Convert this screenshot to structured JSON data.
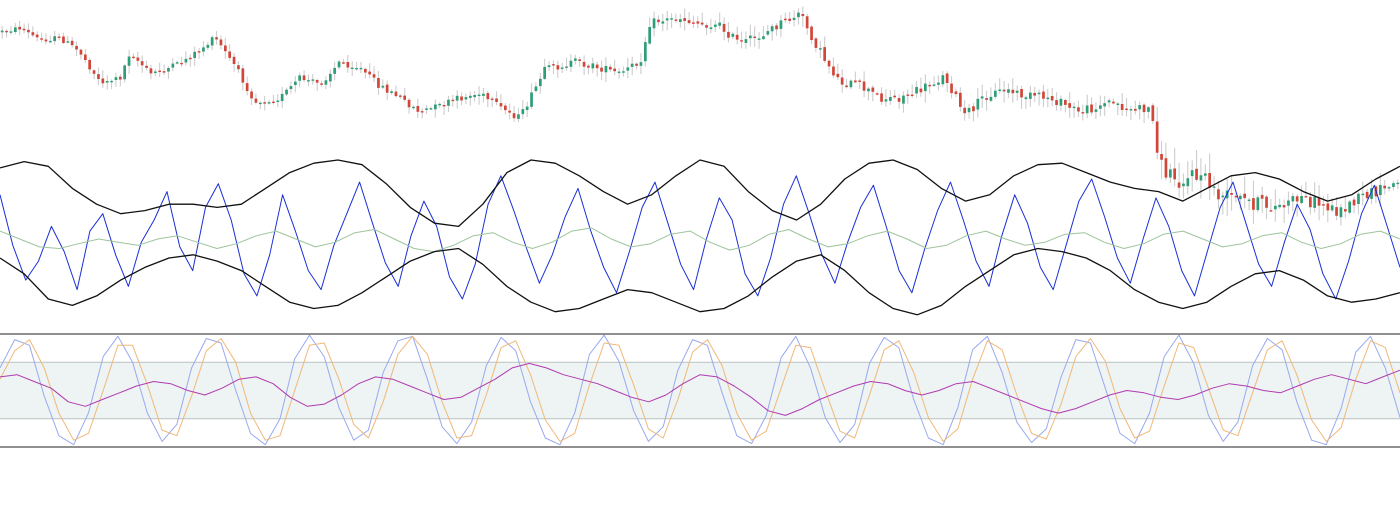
{
  "colors": {
    "up": "#2e9e76",
    "down": "#d2463a",
    "wick": "#c8c8c8",
    "band": "#111111",
    "rsi": "#1a2fd6",
    "rsi_ma": "#9cc49c",
    "stoch_k": "#9aa9ee",
    "stoch_d": "#f0b87a",
    "mid": "#b03bb0",
    "zone": "#eef3f3",
    "zone_line": "#b9c2c2",
    "frame": "#222222",
    "background": "#ffffff"
  },
  "chart_data": [
    {
      "type": "candlestick",
      "title": "",
      "candles_count": 320,
      "close_path": [
        [
          0,
          32
        ],
        [
          20,
          28
        ],
        [
          40,
          40
        ],
        [
          60,
          38
        ],
        [
          80,
          52
        ],
        [
          100,
          82
        ],
        [
          120,
          78
        ],
        [
          130,
          52
        ],
        [
          150,
          74
        ],
        [
          175,
          66
        ],
        [
          200,
          50
        ],
        [
          215,
          38
        ],
        [
          235,
          66
        ],
        [
          255,
          102
        ],
        [
          280,
          98
        ],
        [
          300,
          78
        ],
        [
          320,
          84
        ],
        [
          340,
          62
        ],
        [
          360,
          68
        ],
        [
          380,
          86
        ],
        [
          400,
          98
        ],
        [
          420,
          112
        ],
        [
          440,
          106
        ],
        [
          460,
          98
        ],
        [
          480,
          94
        ],
        [
          500,
          108
        ],
        [
          520,
          118
        ],
        [
          545,
          70
        ],
        [
          575,
          62
        ],
        [
          600,
          68
        ],
        [
          620,
          74
        ],
        [
          640,
          62
        ],
        [
          650,
          22
        ],
        [
          680,
          18
        ],
        [
          700,
          24
        ],
        [
          720,
          26
        ],
        [
          740,
          44
        ],
        [
          760,
          36
        ],
        [
          780,
          24
        ],
        [
          800,
          14
        ],
        [
          820,
          52
        ],
        [
          840,
          82
        ],
        [
          860,
          86
        ],
        [
          880,
          98
        ],
        [
          900,
          98
        ],
        [
          920,
          90
        ],
        [
          945,
          76
        ],
        [
          965,
          116
        ],
        [
          985,
          96
        ],
        [
          1005,
          90
        ],
        [
          1025,
          96
        ],
        [
          1050,
          98
        ],
        [
          1080,
          112
        ],
        [
          1110,
          102
        ],
        [
          1130,
          110
        ],
        [
          1150,
          108
        ],
        [
          1162,
          170
        ],
        [
          1180,
          180
        ],
        [
          1200,
          175
        ],
        [
          1220,
          196
        ],
        [
          1240,
          200
        ],
        [
          1260,
          204
        ],
        [
          1280,
          208
        ],
        [
          1300,
          198
        ],
        [
          1320,
          204
        ],
        [
          1340,
          212
        ],
        [
          1360,
          198
        ],
        [
          1380,
          190
        ],
        [
          1400,
          182
        ]
      ],
      "volatility_path": [
        [
          0,
          3
        ],
        [
          100,
          4
        ],
        [
          300,
          4
        ],
        [
          650,
          5
        ],
        [
          800,
          6
        ],
        [
          1150,
          6
        ],
        [
          1160,
          12
        ],
        [
          1400,
          6
        ]
      ]
    },
    {
      "type": "line",
      "title": "",
      "series": [
        {
          "role": "oscillator",
          "color_key": "rsi",
          "values": [
            0.78,
            0.46,
            0.24,
            0.36,
            0.58,
            0.42,
            0.18,
            0.55,
            0.66,
            0.4,
            0.2,
            0.48,
            0.62,
            0.8,
            0.45,
            0.3,
            0.7,
            0.85,
            0.62,
            0.28,
            0.14,
            0.4,
            0.78,
            0.55,
            0.3,
            0.18,
            0.46,
            0.66,
            0.86,
            0.6,
            0.35,
            0.2,
            0.52,
            0.74,
            0.58,
            0.26,
            0.12,
            0.34,
            0.72,
            0.9,
            0.68,
            0.44,
            0.22,
            0.4,
            0.64,
            0.82,
            0.55,
            0.32,
            0.16,
            0.42,
            0.7,
            0.86,
            0.6,
            0.34,
            0.18,
            0.5,
            0.76,
            0.62,
            0.28,
            0.14,
            0.38,
            0.72,
            0.9,
            0.66,
            0.4,
            0.22,
            0.48,
            0.7,
            0.84,
            0.58,
            0.3,
            0.16,
            0.44,
            0.68,
            0.86,
            0.62,
            0.36,
            0.2,
            0.52,
            0.78,
            0.6,
            0.32,
            0.18,
            0.46,
            0.74,
            0.88,
            0.64,
            0.38,
            0.22,
            0.5,
            0.76,
            0.58,
            0.3,
            0.14,
            0.42,
            0.7,
            0.86,
            0.6,
            0.34,
            0.2,
            0.48,
            0.72,
            0.56,
            0.28,
            0.12,
            0.36,
            0.66,
            0.84,
            0.58,
            0.32
          ]
        },
        {
          "role": "oscillator-average",
          "color_key": "rsi_ma",
          "values": [
            0.55,
            0.5,
            0.45,
            0.44,
            0.47,
            0.5,
            0.48,
            0.46,
            0.5,
            0.52,
            0.48,
            0.44,
            0.47,
            0.52,
            0.55,
            0.5,
            0.45,
            0.48,
            0.54,
            0.56,
            0.5,
            0.44,
            0.42,
            0.46,
            0.52,
            0.54,
            0.48,
            0.44,
            0.48,
            0.55,
            0.57,
            0.5,
            0.45,
            0.47,
            0.53,
            0.55,
            0.48,
            0.43,
            0.46,
            0.53,
            0.56,
            0.5,
            0.45,
            0.47,
            0.52,
            0.55,
            0.5,
            0.44,
            0.46,
            0.52,
            0.55,
            0.5,
            0.46,
            0.48,
            0.53,
            0.54,
            0.48,
            0.44,
            0.47,
            0.53,
            0.55,
            0.5,
            0.45,
            0.47,
            0.52,
            0.54,
            0.48,
            0.44,
            0.47,
            0.53,
            0.55,
            0.5
          ]
        },
        {
          "role": "upper-band",
          "color_key": "band",
          "values": [
            0.95,
            0.99,
            0.96,
            0.82,
            0.72,
            0.66,
            0.68,
            0.72,
            0.72,
            0.7,
            0.72,
            0.82,
            0.92,
            0.98,
            1.0,
            0.97,
            0.85,
            0.7,
            0.6,
            0.58,
            0.72,
            0.92,
            1.0,
            0.98,
            0.9,
            0.8,
            0.72,
            0.78,
            0.9,
            1.0,
            0.96,
            0.8,
            0.68,
            0.62,
            0.72,
            0.88,
            0.98,
            1.0,
            0.94,
            0.82,
            0.74,
            0.78,
            0.9,
            0.97,
            0.98,
            0.92,
            0.86,
            0.82,
            0.8,
            0.74,
            0.82,
            0.9,
            0.92,
            0.88,
            0.8,
            0.74,
            0.78,
            0.88,
            0.96
          ]
        },
        {
          "role": "lower-band",
          "color_key": "band",
          "values": [
            0.38,
            0.28,
            0.12,
            0.08,
            0.14,
            0.24,
            0.32,
            0.38,
            0.4,
            0.36,
            0.3,
            0.2,
            0.1,
            0.06,
            0.08,
            0.16,
            0.26,
            0.36,
            0.42,
            0.44,
            0.34,
            0.2,
            0.1,
            0.04,
            0.06,
            0.12,
            0.18,
            0.16,
            0.1,
            0.04,
            0.06,
            0.14,
            0.26,
            0.36,
            0.4,
            0.3,
            0.16,
            0.06,
            0.02,
            0.08,
            0.2,
            0.3,
            0.4,
            0.44,
            0.42,
            0.38,
            0.3,
            0.18,
            0.1,
            0.06,
            0.1,
            0.2,
            0.28,
            0.3,
            0.24,
            0.14,
            0.1,
            0.12,
            0.16
          ]
        }
      ]
    },
    {
      "type": "line",
      "title": "",
      "zone": {
        "upper": 0.75,
        "lower": 0.25
      },
      "series": [
        {
          "role": "stoch-k",
          "color_key": "stoch_k",
          "values": [
            0.7,
            0.95,
            0.9,
            0.45,
            0.1,
            0.02,
            0.3,
            0.8,
            0.98,
            0.75,
            0.3,
            0.05,
            0.2,
            0.7,
            0.96,
            0.92,
            0.5,
            0.12,
            0.02,
            0.25,
            0.78,
            0.99,
            0.8,
            0.35,
            0.06,
            0.15,
            0.66,
            0.94,
            0.98,
            0.6,
            0.18,
            0.03,
            0.22,
            0.72,
            0.97,
            0.85,
            0.4,
            0.08,
            0.02,
            0.3,
            0.82,
            0.99,
            0.76,
            0.32,
            0.05,
            0.18,
            0.68,
            0.95,
            0.9,
            0.48,
            0.1,
            0.03,
            0.28,
            0.79,
            0.98,
            0.7,
            0.26,
            0.04,
            0.2,
            0.74,
            0.97,
            0.88,
            0.42,
            0.08,
            0.02,
            0.35,
            0.86,
            0.98,
            0.66,
            0.22,
            0.04,
            0.16,
            0.62,
            0.95,
            0.92,
            0.52,
            0.12,
            0.03,
            0.3,
            0.8,
            0.99,
            0.74,
            0.28,
            0.05,
            0.22,
            0.72,
            0.96,
            0.86,
            0.4,
            0.06,
            0.02,
            0.34,
            0.84,
            0.98,
            0.7,
            0.26
          ]
        },
        {
          "role": "stoch-d",
          "color_key": "stoch_d",
          "values": [
            0.6,
            0.85,
            0.95,
            0.7,
            0.3,
            0.06,
            0.12,
            0.5,
            0.9,
            0.9,
            0.55,
            0.15,
            0.1,
            0.45,
            0.85,
            0.96,
            0.75,
            0.3,
            0.06,
            0.1,
            0.5,
            0.9,
            0.92,
            0.6,
            0.2,
            0.08,
            0.4,
            0.82,
            0.98,
            0.82,
            0.4,
            0.08,
            0.1,
            0.46,
            0.88,
            0.94,
            0.64,
            0.24,
            0.05,
            0.12,
            0.55,
            0.92,
            0.9,
            0.55,
            0.16,
            0.08,
            0.42,
            0.84,
            0.95,
            0.72,
            0.3,
            0.06,
            0.14,
            0.52,
            0.9,
            0.88,
            0.5,
            0.14,
            0.08,
            0.46,
            0.86,
            0.94,
            0.66,
            0.26,
            0.05,
            0.16,
            0.6,
            0.94,
            0.86,
            0.46,
            0.12,
            0.07,
            0.38,
            0.8,
            0.96,
            0.76,
            0.34,
            0.08,
            0.14,
            0.54,
            0.92,
            0.88,
            0.52,
            0.15,
            0.1,
            0.48,
            0.86,
            0.94,
            0.64,
            0.24,
            0.05,
            0.17,
            0.6,
            0.94,
            0.88,
            0.48
          ]
        },
        {
          "role": "midline",
          "color_key": "mid",
          "values": [
            0.62,
            0.64,
            0.58,
            0.52,
            0.4,
            0.36,
            0.42,
            0.48,
            0.54,
            0.58,
            0.56,
            0.5,
            0.46,
            0.52,
            0.6,
            0.62,
            0.56,
            0.44,
            0.36,
            0.38,
            0.46,
            0.56,
            0.62,
            0.6,
            0.54,
            0.48,
            0.42,
            0.44,
            0.52,
            0.6,
            0.7,
            0.74,
            0.7,
            0.64,
            0.6,
            0.56,
            0.5,
            0.44,
            0.4,
            0.46,
            0.56,
            0.64,
            0.62,
            0.54,
            0.44,
            0.32,
            0.28,
            0.34,
            0.42,
            0.48,
            0.54,
            0.58,
            0.56,
            0.5,
            0.46,
            0.5,
            0.56,
            0.58,
            0.52,
            0.46,
            0.4,
            0.34,
            0.3,
            0.34,
            0.4,
            0.46,
            0.5,
            0.48,
            0.44,
            0.42,
            0.46,
            0.52,
            0.56,
            0.54,
            0.5,
            0.48,
            0.54,
            0.6,
            0.64,
            0.6,
            0.56,
            0.62,
            0.68
          ]
        }
      ]
    }
  ]
}
